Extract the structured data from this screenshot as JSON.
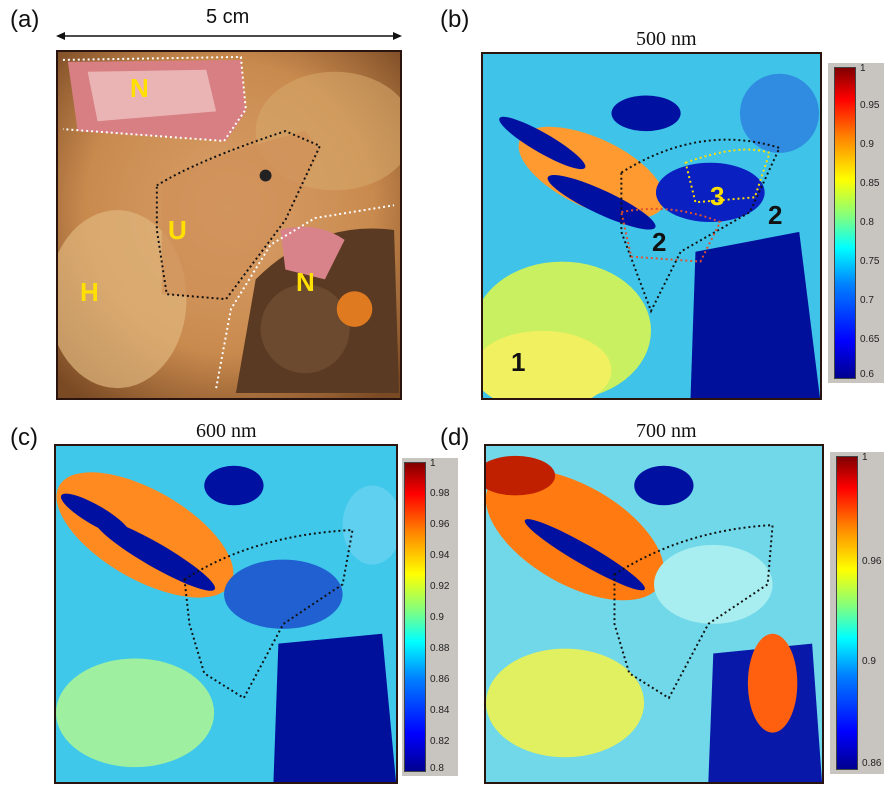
{
  "panels": {
    "a": {
      "label": "(a)",
      "scale": "5 cm",
      "regions": {
        "n1": "N",
        "u": "U",
        "h": "H",
        "n2": "N"
      }
    },
    "b": {
      "label": "(b)",
      "title": "500 nm",
      "markers": {
        "m1": "1",
        "m2a": "2",
        "m3": "3",
        "m2b": "2"
      },
      "ticks": [
        "1",
        "0.95",
        "0.9",
        "0.85",
        "0.8",
        "0.75",
        "0.7",
        "0.65",
        "0.6"
      ]
    },
    "c": {
      "label": "(c)",
      "title": "600 nm",
      "ticks": [
        "1",
        "0.98",
        "0.96",
        "0.94",
        "0.92",
        "0.9",
        "0.88",
        "0.86",
        "0.84",
        "0.82",
        "0.8"
      ]
    },
    "d": {
      "label": "(d)",
      "title": "700 nm",
      "ticks": [
        "1",
        "0.96",
        "0.9",
        "0.86"
      ]
    }
  },
  "colors": {
    "region_label": "#ffe000",
    "marker_dark": "#111111",
    "marker_yellow": "#ffe000"
  }
}
